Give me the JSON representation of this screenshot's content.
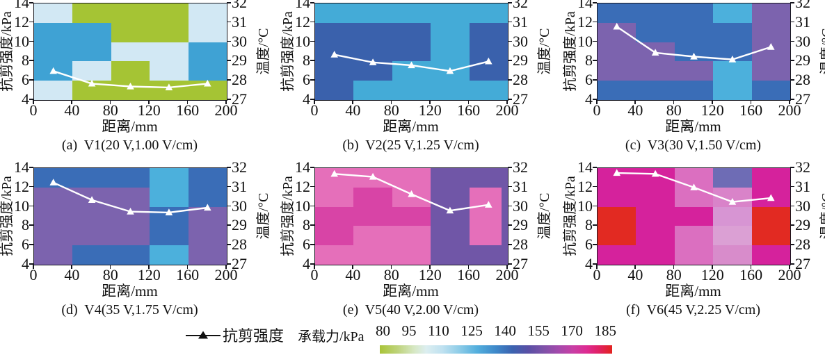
{
  "figure_title": "",
  "legend": {
    "line_label": "抗剪强度",
    "colorbar_label": "承载力/kPa"
  },
  "chart_data": {
    "type": "heatmap+line",
    "axes_shared": {
      "x_label": "距离/mm",
      "y_left_label": "抗剪强度/kPa",
      "y_right_label": "温度/°C",
      "x_range": [
        0,
        200
      ],
      "x_ticks": [
        "0",
        "40",
        "80",
        "120",
        "160",
        "200"
      ],
      "y_left_range": [
        4,
        14
      ],
      "y_left_ticks_top_to_bottom": [
        "14",
        "12",
        "10",
        "8",
        "6",
        "4"
      ],
      "y_right_range": [
        27,
        32
      ],
      "y_right_ticks_top_to_bottom": [
        "32",
        "31",
        "30",
        "29",
        "28",
        "27"
      ],
      "heatmap_col_edges_mm": [
        0,
        40,
        80,
        120,
        160,
        200
      ],
      "heatmap_row_edges_kpa": [
        14,
        12,
        10,
        8,
        6,
        4
      ],
      "line_color": "#ffffff",
      "marker": "triangle-up"
    },
    "x_points_mm": [
      20,
      60,
      100,
      140,
      180
    ],
    "subplots": [
      {
        "id": "a",
        "caption": "(a)  V1(20 V,1.00 V/cm)",
        "shear_strength_kpa": [
          7.0,
          5.7,
          5.4,
          5.3,
          5.7
        ],
        "heatmap": [
          [
            "#d2e8f4",
            "#a5c434",
            "#a5c434",
            "#a5c434",
            "#d2e8f4"
          ],
          [
            "#3fa2d4",
            "#3fa2d4",
            "#a5c434",
            "#a5c434",
            "#d2e8f4"
          ],
          [
            "#3fa2d4",
            "#3fa2d4",
            "#d2e8f4",
            "#d2e8f4",
            "#3fa2d4"
          ],
          [
            "#3fa2d4",
            "#d2e8f4",
            "#a5c434",
            "#d2e8f4",
            "#3fa2d4"
          ],
          [
            "#d2e8f4",
            "#a5c434",
            "#a5c434",
            "#a5c434",
            "#a5c434"
          ]
        ]
      },
      {
        "id": "b",
        "caption": "(b)  V2(25 V,1.25 V/cm)",
        "shear_strength_kpa": [
          8.7,
          7.9,
          7.6,
          7.0,
          8.0
        ],
        "heatmap": [
          [
            "#44abd7",
            "#44abd7",
            "#44abd7",
            "#44abd7",
            "#44abd7"
          ],
          [
            "#3a61ac",
            "#3a61ac",
            "#3a61ac",
            "#44abd7",
            "#3a61ac"
          ],
          [
            "#3a61ac",
            "#3a61ac",
            "#3a61ac",
            "#44abd7",
            "#3a61ac"
          ],
          [
            "#3a61ac",
            "#3a61ac",
            "#44abd7",
            "#44abd7",
            "#3a61ac"
          ],
          [
            "#3a61ac",
            "#44abd7",
            "#44abd7",
            "#44abd7",
            "#44abd7"
          ]
        ]
      },
      {
        "id": "c",
        "caption": "(c)  V3(30 V,1.50 V/cm)",
        "shear_strength_kpa": [
          11.6,
          8.9,
          8.5,
          8.2,
          9.5
        ],
        "heatmap": [
          [
            "#3a6db7",
            "#3a6db7",
            "#3a6db7",
            "#4cb0dc",
            "#7c63ae"
          ],
          [
            "#7c63ae",
            "#3a6db7",
            "#3a6db7",
            "#3a6db7",
            "#7c63ae"
          ],
          [
            "#7c63ae",
            "#7c63ae",
            "#3a6db7",
            "#3a6db7",
            "#7c63ae"
          ],
          [
            "#7c63ae",
            "#7c63ae",
            "#7c63ae",
            "#4cb0dc",
            "#7c63ae"
          ],
          [
            "#3a6db7",
            "#3a6db7",
            "#3a6db7",
            "#4cb0dc",
            "#3a6db7"
          ]
        ]
      },
      {
        "id": "d",
        "caption": "(d)  V4(35 V,1.75 V/cm)",
        "shear_strength_kpa": [
          12.5,
          10.7,
          9.5,
          9.4,
          9.9
        ],
        "heatmap": [
          [
            "#3a6db7",
            "#3a6db7",
            "#3a6db7",
            "#4cb0dc",
            "#3a6db7"
          ],
          [
            "#7c63ae",
            "#7c63ae",
            "#7c63ae",
            "#4cb0dc",
            "#3a6db7"
          ],
          [
            "#7c63ae",
            "#7c63ae",
            "#7c63ae",
            "#3a6db7",
            "#7c63ae"
          ],
          [
            "#7c63ae",
            "#7c63ae",
            "#7c63ae",
            "#3a6db7",
            "#7c63ae"
          ],
          [
            "#7c63ae",
            "#3a6db7",
            "#3a6db7",
            "#4cb0dc",
            "#7c63ae"
          ]
        ]
      },
      {
        "id": "e",
        "caption": "(e)  V5(40 V,2.00 V/cm)",
        "shear_strength_kpa": [
          13.4,
          13.1,
          11.3,
          9.6,
          10.2
        ],
        "heatmap": [
          [
            "#e56fba",
            "#e56fba",
            "#e56fba",
            "#7056a7",
            "#7056a7"
          ],
          [
            "#e56fba",
            "#d844a6",
            "#e56fba",
            "#7056a7",
            "#e56fba"
          ],
          [
            "#d844a6",
            "#d844a6",
            "#d844a6",
            "#7056a7",
            "#e56fba"
          ],
          [
            "#d844a6",
            "#e56fba",
            "#e56fba",
            "#7056a7",
            "#e56fba"
          ],
          [
            "#e56fba",
            "#e56fba",
            "#e56fba",
            "#7056a7",
            "#7056a7"
          ]
        ],
        "right_strip": {
          "rows": [
            1,
            2,
            3
          ],
          "width_pct": 18,
          "color": "#7056a7"
        }
      },
      {
        "id": "f",
        "caption": "(f)  V6(45 V,2.25 V/cm)",
        "shear_strength_kpa": [
          13.5,
          13.4,
          12.0,
          10.5,
          10.9
        ],
        "heatmap": [
          [
            "#d5229c",
            "#d5229c",
            "#db6fc0",
            "#6e6cb5",
            "#d5229c"
          ],
          [
            "#d5229c",
            "#d5229c",
            "#db6fc0",
            "#d983c9",
            "#d5229c"
          ],
          [
            "#e22a22",
            "#d5229c",
            "#d5229c",
            "#d795d3",
            "#e22a22"
          ],
          [
            "#e22a22",
            "#d5229c",
            "#db6fc0",
            "#dba0d4",
            "#e22a22"
          ],
          [
            "#d5229c",
            "#d5229c",
            "#db6fc0",
            "#d88ccb",
            "#d5229c"
          ]
        ]
      }
    ],
    "colorbar": {
      "label": "承载力/kPa",
      "ticks": [
        "80",
        "95",
        "110",
        "125",
        "140",
        "155",
        "170",
        "185"
      ],
      "range_kpa": [
        80,
        185
      ],
      "gradient_stops": [
        {
          "p": 0,
          "c": "#a9c438"
        },
        {
          "p": 8,
          "c": "#bfd47f"
        },
        {
          "p": 15,
          "c": "#d7e8c6"
        },
        {
          "p": 20,
          "c": "#dceef0"
        },
        {
          "p": 27,
          "c": "#bfe1f0"
        },
        {
          "p": 34,
          "c": "#8fcde8"
        },
        {
          "p": 42,
          "c": "#52aedd"
        },
        {
          "p": 50,
          "c": "#3e88c9"
        },
        {
          "p": 57,
          "c": "#3b63b0"
        },
        {
          "p": 64,
          "c": "#5a4fa5"
        },
        {
          "p": 70,
          "c": "#7b52a8"
        },
        {
          "p": 77,
          "c": "#a44aac"
        },
        {
          "p": 83,
          "c": "#c73fa5"
        },
        {
          "p": 89,
          "c": "#dd2b92"
        },
        {
          "p": 94,
          "c": "#e02166"
        },
        {
          "p": 100,
          "c": "#e2231f"
        }
      ],
      "color_value_estimates_kpa": {
        "#a5c434": 83,
        "#d2e8f4": 103,
        "#3fa2d4": 120,
        "#44abd7": 119,
        "#4cb0dc": 118,
        "#3a61ac": 136,
        "#3a6db7": 133,
        "#7c63ae": 146,
        "#7056a7": 148,
        "#6e6cb5": 143,
        "#e56fba": 165,
        "#d844a6": 172,
        "#d5229c": 176,
        "#db6fc0": 164,
        "#d983c9": 161,
        "#d795d3": 158,
        "#dba0d4": 157,
        "#d88ccb": 160,
        "#e22a22": 185
      }
    }
  }
}
